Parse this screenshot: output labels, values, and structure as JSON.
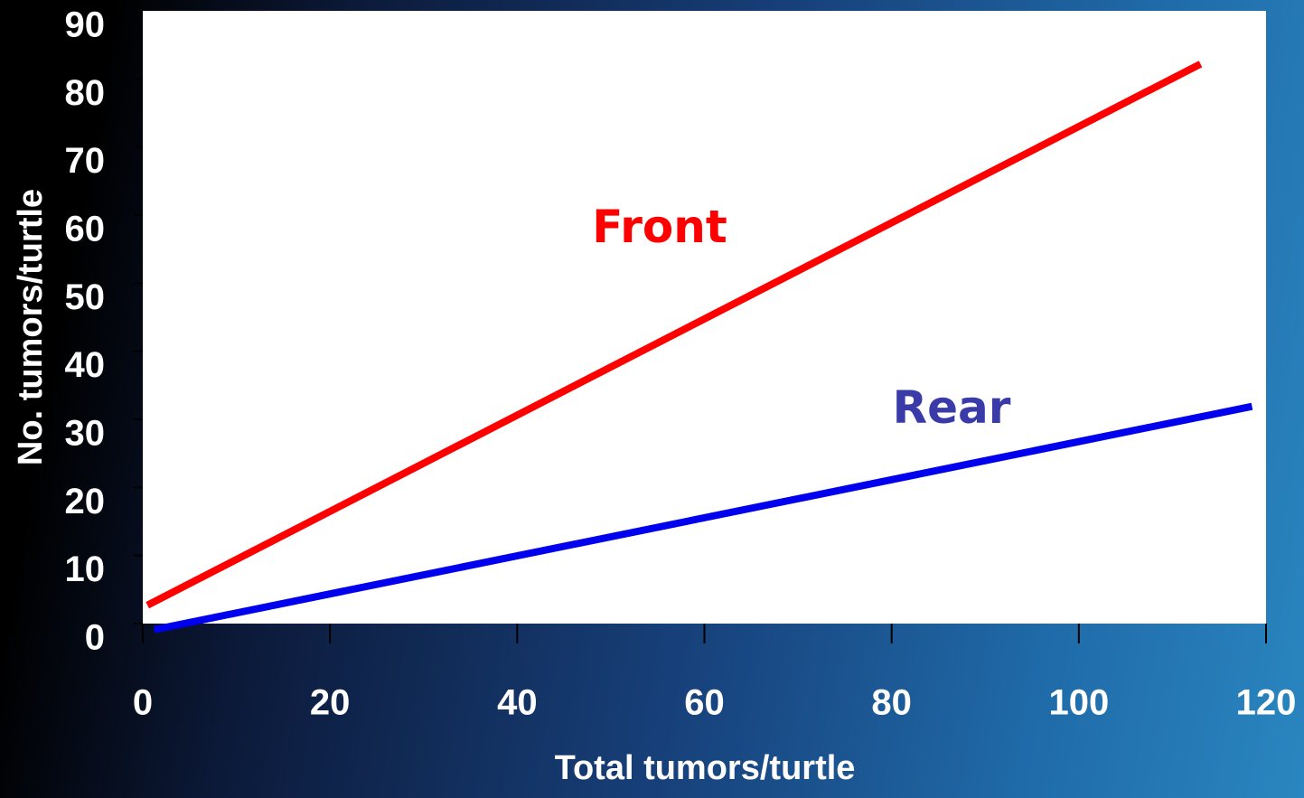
{
  "chart_data": {
    "type": "line",
    "x_label": "Total tumors/turtle",
    "y_label": "No. tumors/turtle",
    "xlim": [
      0,
      120
    ],
    "ylim": [
      0,
      90
    ],
    "xticks": [
      0,
      20,
      40,
      60,
      80,
      100,
      120
    ],
    "yticks": [
      0,
      10,
      20,
      30,
      40,
      50,
      60,
      70,
      80,
      90
    ],
    "series": [
      {
        "name": "Front",
        "color": "#ff0000",
        "x": [
          0.5,
          113
        ],
        "values": [
          2.7,
          82.2
        ]
      },
      {
        "name": "Rear",
        "color": "#0000ee",
        "x": [
          1.2,
          118.5
        ],
        "values": [
          -0.9,
          31.9
        ]
      }
    ],
    "annotations": [
      {
        "text": "Front",
        "color": "#ff0000"
      },
      {
        "text": "Rear",
        "color": "#3a3aa8"
      }
    ]
  }
}
